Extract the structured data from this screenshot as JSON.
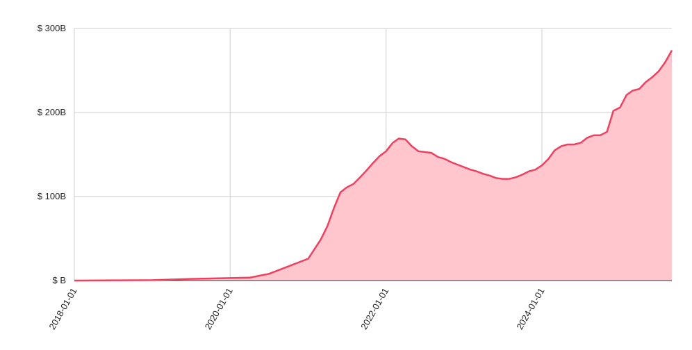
{
  "chart_data": {
    "type": "area",
    "x": [
      "2018-01-01",
      "2019-01-01",
      "2019-07-01",
      "2020-01-01",
      "2020-04-01",
      "2020-07-01",
      "2020-10-01",
      "2021-01-01",
      "2021-03-01",
      "2021-04-01",
      "2021-05-01",
      "2021-06-01",
      "2021-07-01",
      "2021-08-01",
      "2021-09-01",
      "2021-10-01",
      "2021-11-01",
      "2021-12-01",
      "2022-01-01",
      "2022-02-01",
      "2022-03-01",
      "2022-04-01",
      "2022-05-01",
      "2022-06-01",
      "2022-07-01",
      "2022-08-01",
      "2022-09-01",
      "2022-10-01",
      "2022-11-01",
      "2022-12-01",
      "2023-01-01",
      "2023-02-01",
      "2023-03-01",
      "2023-04-01",
      "2023-05-01",
      "2023-06-01",
      "2023-07-01",
      "2023-08-01",
      "2023-09-01",
      "2023-10-01",
      "2023-11-01",
      "2023-12-01",
      "2024-01-01",
      "2024-02-01",
      "2024-03-01",
      "2024-04-01",
      "2024-05-01",
      "2024-06-01",
      "2024-07-01",
      "2024-08-01",
      "2024-09-01",
      "2024-10-01",
      "2024-11-01",
      "2024-12-01",
      "2025-01-01",
      "2025-02-01",
      "2025-03-01",
      "2025-04-01",
      "2025-05-01",
      "2025-06-01",
      "2025-07-01",
      "2025-08-01",
      "2025-09-01"
    ],
    "values": [
      0,
      0.5,
      2,
      3,
      3.5,
      8,
      17,
      26,
      49,
      65,
      86,
      105,
      111,
      115,
      123,
      131,
      140,
      148,
      154,
      164,
      169,
      168,
      160,
      154,
      153,
      152,
      147,
      145,
      141,
      138,
      135,
      132,
      130,
      127,
      125,
      122,
      121,
      121,
      123,
      126,
      130,
      132,
      137,
      145,
      155,
      160,
      162,
      162,
      164,
      170,
      173,
      173,
      177,
      202,
      206,
      221,
      226,
      228,
      236,
      242,
      249,
      260,
      274
    ],
    "color": "#f0405f",
    "fill_color": "#ffc6ce",
    "xlim": [
      "2018-01-01",
      "2025-09-01"
    ],
    "xticks": [
      "2018-01-01",
      "2020-01-01",
      "2022-01-01",
      "2024-01-01"
    ],
    "ylim": [
      0,
      300
    ],
    "yticks": [
      {
        "value": 0,
        "label": "$ B"
      },
      {
        "value": 100,
        "label": "$ 100B"
      },
      {
        "value": 200,
        "label": "$ 200B"
      },
      {
        "value": 300,
        "label": "$ 300B"
      }
    ],
    "grid": true
  }
}
